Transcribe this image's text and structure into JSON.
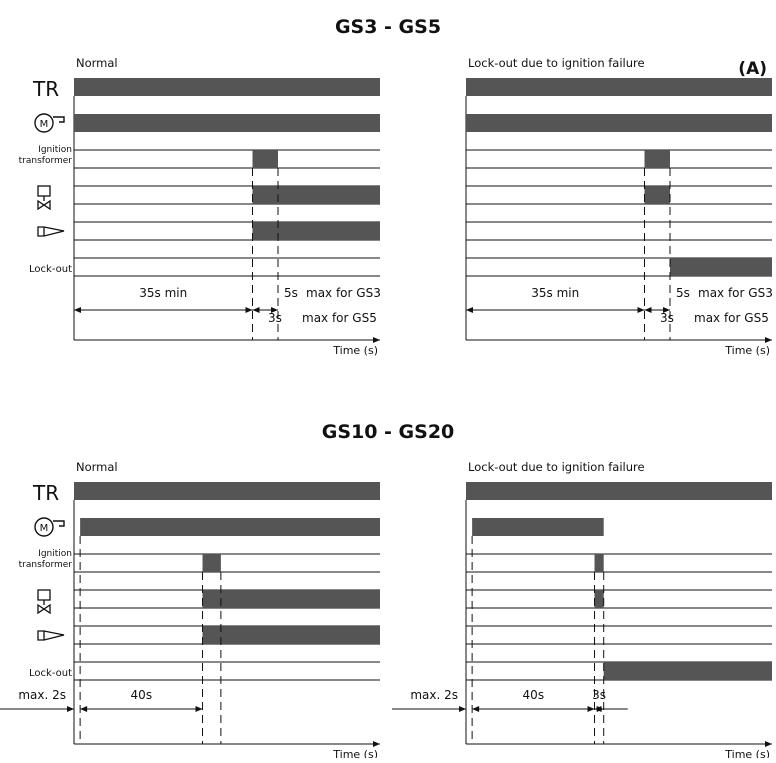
{
  "figure_label": "(A)",
  "signals": {
    "tr": "TR",
    "motor": "M",
    "ignition": [
      "Ignition",
      "transformer"
    ],
    "lockout": "Lock-out"
  },
  "sections": [
    {
      "title": "GS3 - GS5",
      "panels": [
        {
          "subtitle": "Normal",
          "t_start_s": 0,
          "t_open_s": 35,
          "t_close_s": 40,
          "t_end_s": 60,
          "bars": {
            "tr": [
              [
                0,
                60
              ]
            ],
            "motor": [
              [
                0,
                60
              ]
            ],
            "ignition": [
              [
                35,
                40
              ]
            ],
            "valve": [
              [
                35,
                60
              ]
            ],
            "flame": [
              [
                35,
                60
              ]
            ],
            "lockout": []
          },
          "labels": {
            "first": "35s min",
            "second": "5s",
            "second_note": "max for GS3",
            "third": "3s",
            "third_note": "max for GS5",
            "axis": "Time (s)"
          }
        },
        {
          "subtitle": "Lock-out due to ignition failure",
          "t_start_s": 0,
          "t_open_s": 35,
          "t_close_s": 40,
          "t_end_s": 60,
          "bars": {
            "tr": [
              [
                0,
                60
              ]
            ],
            "motor": [
              [
                0,
                60
              ]
            ],
            "ignition": [
              [
                35,
                40
              ]
            ],
            "valve": [
              [
                35,
                40
              ]
            ],
            "flame": [],
            "lockout": [
              [
                40,
                60
              ]
            ]
          },
          "labels": {
            "first": "35s min",
            "second": "5s",
            "second_note": "max for GS3",
            "third": "3s",
            "third_note": "max for GS5",
            "axis": "Time (s)"
          }
        }
      ]
    },
    {
      "title": "GS10 - GS20",
      "panels": [
        {
          "subtitle": "Normal",
          "t_start_s": 0,
          "t_open_s": 42,
          "t_close_s": 48,
          "t_end_s": 100,
          "bars": {
            "tr": [
              [
                0,
                100
              ]
            ],
            "motor": [
              [
                2,
                100
              ]
            ],
            "ignition": [
              [
                42,
                48
              ]
            ],
            "valve": [
              [
                42,
                100
              ]
            ],
            "flame": [
              [
                42,
                100
              ]
            ],
            "lockout": []
          },
          "labels": {
            "pre": "max. 2s",
            "first": "40s",
            "axis": "Time (s)"
          }
        },
        {
          "subtitle": "Lock-out due to ignition failure",
          "t_start_s": 0,
          "t_open_s": 42,
          "t_close_s": 45,
          "t_end_s": 100,
          "bars": {
            "tr": [
              [
                0,
                100
              ]
            ],
            "motor": [
              [
                2,
                45
              ]
            ],
            "ignition": [
              [
                42,
                45
              ]
            ],
            "valve": [
              [
                42,
                45
              ]
            ],
            "flame": [],
            "lockout": [
              [
                45,
                100
              ]
            ]
          },
          "labels": {
            "pre": "max. 2s",
            "first": "40s",
            "second": "3s",
            "axis": "Time (s)"
          }
        }
      ]
    }
  ]
}
